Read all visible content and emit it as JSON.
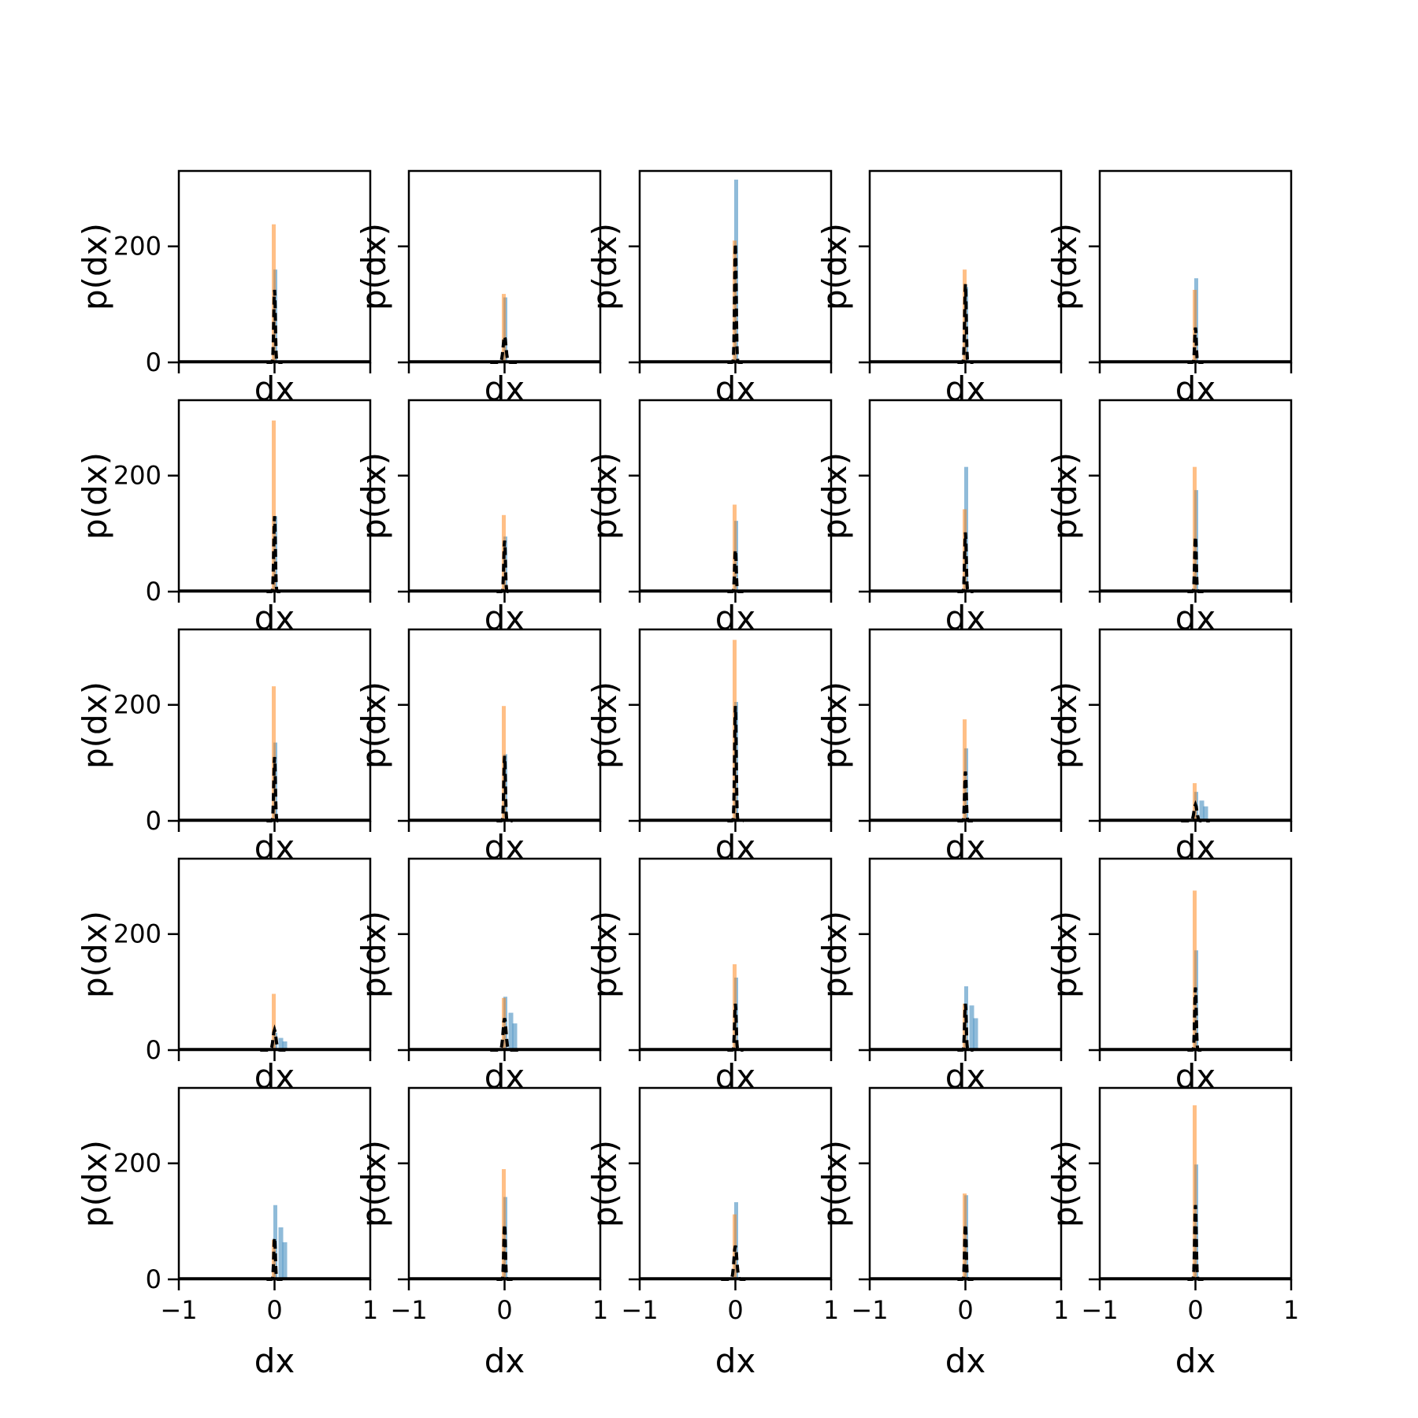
{
  "figure": {
    "rows": 5,
    "cols": 5,
    "xlim": [
      -1,
      1
    ],
    "ylim": [
      0,
      330
    ],
    "x_ticks": [
      -1,
      0,
      1
    ],
    "x_tick_labels": [
      "−1",
      "0",
      "1"
    ],
    "y_ticks": [
      0,
      200
    ],
    "y_tick_labels": [
      "0",
      "200"
    ],
    "xlabel": "dx",
    "ylabel": "p(dx)"
  },
  "colors": {
    "hist_a": "#1f77b4",
    "hist_b": "#ff7f0e",
    "fit_line": "#000000",
    "axes": "#000000"
  },
  "chart_data": {
    "type": "histogram-grid",
    "series": [
      {
        "name": "",
        "role": "blue histogram (peak density)"
      },
      {
        "name": "",
        "role": "orange histogram (peak density)"
      },
      {
        "name": "",
        "role": "black dashed density (peak)"
      }
    ],
    "panels": [
      {
        "blue": 160,
        "orange": 238,
        "black": 125
      },
      {
        "blue": 112,
        "orange": 118,
        "black": 45
      },
      {
        "blue": 315,
        "orange": 210,
        "black": 205
      },
      {
        "blue": 130,
        "orange": 160,
        "black": 135
      },
      {
        "blue": 145,
        "orange": 125,
        "black": 60
      },
      {
        "blue": 130,
        "orange": 295,
        "black": 130
      },
      {
        "blue": 95,
        "orange": 132,
        "black": 88
      },
      {
        "blue": 122,
        "orange": 150,
        "black": 72
      },
      {
        "blue": 215,
        "orange": 142,
        "black": 102
      },
      {
        "blue": 175,
        "orange": 215,
        "black": 95
      },
      {
        "blue": 135,
        "orange": 232,
        "black": 110
      },
      {
        "blue": 115,
        "orange": 198,
        "black": 112
      },
      {
        "blue": 205,
        "orange": 312,
        "black": 198
      },
      {
        "blue": 125,
        "orange": 175,
        "black": 85
      },
      {
        "blue": 50,
        "orange": 65,
        "black": 28
      },
      {
        "blue": 30,
        "orange": 97,
        "black": 35
      },
      {
        "blue": 92,
        "orange": 90,
        "black": 55
      },
      {
        "blue": 125,
        "orange": 148,
        "black": 80
      },
      {
        "blue": 110,
        "orange": 80,
        "black": 80
      },
      {
        "blue": 172,
        "orange": 275,
        "black": 108
      },
      {
        "blue": 128,
        "orange": 68,
        "black": 72
      },
      {
        "blue": 142,
        "orange": 190,
        "black": 95
      },
      {
        "blue": 133,
        "orange": 112,
        "black": 58
      },
      {
        "blue": 145,
        "orange": 148,
        "black": 95
      },
      {
        "blue": 198,
        "orange": 300,
        "black": 128
      }
    ]
  }
}
